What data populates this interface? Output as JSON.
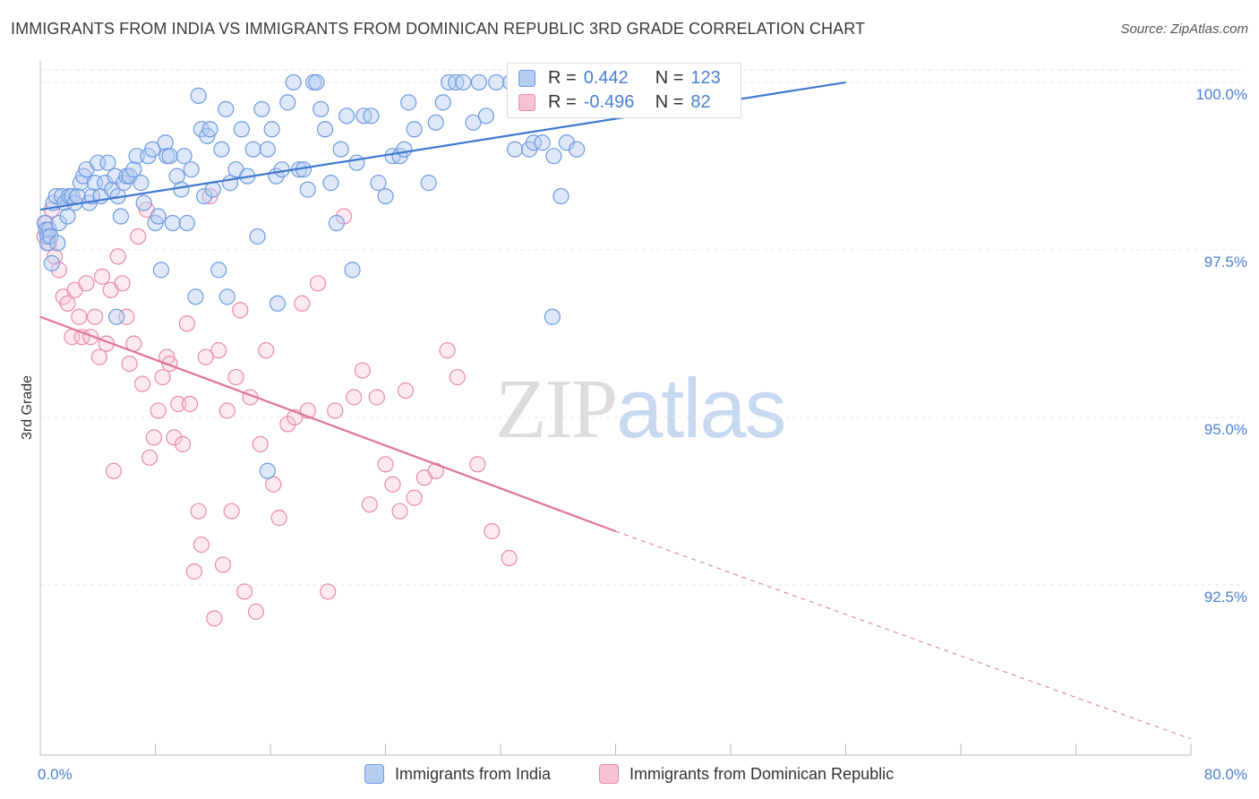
{
  "title": "IMMIGRANTS FROM INDIA VS IMMIGRANTS FROM DOMINICAN REPUBLIC 3RD GRADE CORRELATION CHART",
  "source": "Source: ZipAtlas.com",
  "watermark": {
    "zip": "ZIP",
    "atlas": "atlas"
  },
  "legend": {
    "r_label": "R =",
    "n_label": "N =",
    "india": {
      "r": "0.442",
      "n": "123"
    },
    "dominican": {
      "r": "-0.496",
      "n": "82"
    }
  },
  "colors": {
    "india_fill": "#b6cdf2",
    "india_stroke": "#6d9be0",
    "india_line": "#3f78cf",
    "dominican_fill": "#f6c3d3",
    "dominican_stroke": "#e88aa9",
    "dominican_line": "#e0739a",
    "axis_text": "#4a7fd6",
    "grid": "#e6e6e6"
  },
  "chart_data": {
    "type": "scatter",
    "title": "IMMIGRANTS FROM INDIA VS IMMIGRANTS FROM DOMINICAN REPUBLIC 3RD GRADE CORRELATION CHART",
    "xlabel": "",
    "ylabel": "3rd Grade",
    "xlim": [
      0,
      80
    ],
    "ylim": [
      90.2,
      100.4
    ],
    "x_tick_labels": [
      "0.0%",
      "80.0%"
    ],
    "y_ticks": [
      92.5,
      95.0,
      97.5,
      100.0
    ],
    "y_tick_labels": [
      "92.5%",
      "95.0%",
      "97.5%",
      "100.0%"
    ],
    "grid": "horizontal dashed",
    "legend_position": "top-center",
    "series": [
      {
        "name": "Immigrants from India",
        "r": 0.442,
        "n": 123,
        "trend": {
          "x": [
            0,
            56
          ],
          "y": [
            98.1,
            100.0
          ]
        },
        "points": [
          [
            0.3,
            97.9
          ],
          [
            0.4,
            97.8
          ],
          [
            0.5,
            97.7
          ],
          [
            0.5,
            97.6
          ],
          [
            0.6,
            97.8
          ],
          [
            0.7,
            97.7
          ],
          [
            0.8,
            97.3
          ],
          [
            0.9,
            98.2
          ],
          [
            1.1,
            98.3
          ],
          [
            1.3,
            97.9
          ],
          [
            1.5,
            98.3
          ],
          [
            1.7,
            98.2
          ],
          [
            1.9,
            98.0
          ],
          [
            2.0,
            98.3
          ],
          [
            2.2,
            98.3
          ],
          [
            2.4,
            98.2
          ],
          [
            2.6,
            98.3
          ],
          [
            2.8,
            98.5
          ],
          [
            3.0,
            98.6
          ],
          [
            3.2,
            98.7
          ],
          [
            3.4,
            98.2
          ],
          [
            3.6,
            98.3
          ],
          [
            3.8,
            98.5
          ],
          [
            4.0,
            98.8
          ],
          [
            4.2,
            98.3
          ],
          [
            4.5,
            98.5
          ],
          [
            4.7,
            98.8
          ],
          [
            5.0,
            98.4
          ],
          [
            5.2,
            98.6
          ],
          [
            5.4,
            98.3
          ],
          [
            5.6,
            98.0
          ],
          [
            5.8,
            98.5
          ],
          [
            6.0,
            98.6
          ],
          [
            6.2,
            98.6
          ],
          [
            6.5,
            98.7
          ],
          [
            6.7,
            98.9
          ],
          [
            7.0,
            98.5
          ],
          [
            7.2,
            98.2
          ],
          [
            7.5,
            98.9
          ],
          [
            7.8,
            99.0
          ],
          [
            8.0,
            97.9
          ],
          [
            8.2,
            98.0
          ],
          [
            8.4,
            97.2
          ],
          [
            8.7,
            99.1
          ],
          [
            8.8,
            98.9
          ],
          [
            9.0,
            98.9
          ],
          [
            9.2,
            97.9
          ],
          [
            9.5,
            98.6
          ],
          [
            9.8,
            98.4
          ],
          [
            10.0,
            98.9
          ],
          [
            10.2,
            97.9
          ],
          [
            10.5,
            98.7
          ],
          [
            11.0,
            99.8
          ],
          [
            11.2,
            99.3
          ],
          [
            11.4,
            98.3
          ],
          [
            11.6,
            99.2
          ],
          [
            11.8,
            99.3
          ],
          [
            12.0,
            98.4
          ],
          [
            12.4,
            97.2
          ],
          [
            12.6,
            99.0
          ],
          [
            12.9,
            99.6
          ],
          [
            13.2,
            98.5
          ],
          [
            13.6,
            98.7
          ],
          [
            14.0,
            99.3
          ],
          [
            14.4,
            98.6
          ],
          [
            14.8,
            99.0
          ],
          [
            15.1,
            97.7
          ],
          [
            15.4,
            99.6
          ],
          [
            15.8,
            99.0
          ],
          [
            16.1,
            99.3
          ],
          [
            16.4,
            98.6
          ],
          [
            16.8,
            98.7
          ],
          [
            17.2,
            99.7
          ],
          [
            17.6,
            100.0
          ],
          [
            18.0,
            98.7
          ],
          [
            18.3,
            98.7
          ],
          [
            18.6,
            98.4
          ],
          [
            19.0,
            100.0
          ],
          [
            19.2,
            100.0
          ],
          [
            19.5,
            99.6
          ],
          [
            19.8,
            99.3
          ],
          [
            20.2,
            98.5
          ],
          [
            20.6,
            97.9
          ],
          [
            20.9,
            99.0
          ],
          [
            21.3,
            99.5
          ],
          [
            21.7,
            97.2
          ],
          [
            22.0,
            98.8
          ],
          [
            22.5,
            99.5
          ],
          [
            23.0,
            99.5
          ],
          [
            23.5,
            98.5
          ],
          [
            24.0,
            98.3
          ],
          [
            24.5,
            98.9
          ],
          [
            25.0,
            98.9
          ],
          [
            25.3,
            99.0
          ],
          [
            25.6,
            99.7
          ],
          [
            26.0,
            99.3
          ],
          [
            27.0,
            98.5
          ],
          [
            27.5,
            99.4
          ],
          [
            28.0,
            99.7
          ],
          [
            28.4,
            100.0
          ],
          [
            28.9,
            100.0
          ],
          [
            29.4,
            100.0
          ],
          [
            30.1,
            99.4
          ],
          [
            30.5,
            100.0
          ],
          [
            31.0,
            99.5
          ],
          [
            31.7,
            100.0
          ],
          [
            32.7,
            100.0
          ],
          [
            33.0,
            99.0
          ],
          [
            34.0,
            99.0
          ],
          [
            34.3,
            99.1
          ],
          [
            34.9,
            99.1
          ],
          [
            35.7,
            98.9
          ],
          [
            36.2,
            98.3
          ],
          [
            36.6,
            99.1
          ],
          [
            37.3,
            99.0
          ],
          [
            38.0,
            99.8
          ],
          [
            1.2,
            97.6
          ],
          [
            10.8,
            96.8
          ],
          [
            13.0,
            96.8
          ],
          [
            16.5,
            96.7
          ],
          [
            5.3,
            96.5
          ],
          [
            35.6,
            96.5
          ],
          [
            15.8,
            94.2
          ]
        ]
      },
      {
        "name": "Immigrants from Dominican Republic",
        "r": -0.496,
        "n": 82,
        "trend": {
          "x": [
            0,
            40
          ],
          "y": [
            96.5,
            93.3
          ]
        },
        "trend_extension": {
          "x": [
            40,
            80
          ],
          "y": [
            93.3,
            90.2
          ]
        },
        "points": [
          [
            0.3,
            97.7
          ],
          [
            0.4,
            97.9
          ],
          [
            0.6,
            97.6
          ],
          [
            0.8,
            98.1
          ],
          [
            1.0,
            97.4
          ],
          [
            1.3,
            97.2
          ],
          [
            1.6,
            96.8
          ],
          [
            1.9,
            96.7
          ],
          [
            2.2,
            96.2
          ],
          [
            2.4,
            96.9
          ],
          [
            2.7,
            96.5
          ],
          [
            2.9,
            96.2
          ],
          [
            3.2,
            97.0
          ],
          [
            3.5,
            96.2
          ],
          [
            3.8,
            96.5
          ],
          [
            4.1,
            95.9
          ],
          [
            4.3,
            97.1
          ],
          [
            4.6,
            96.1
          ],
          [
            4.9,
            96.9
          ],
          [
            5.1,
            94.2
          ],
          [
            5.4,
            97.4
          ],
          [
            5.7,
            97.0
          ],
          [
            6.0,
            96.5
          ],
          [
            6.2,
            95.8
          ],
          [
            6.5,
            96.1
          ],
          [
            6.8,
            97.7
          ],
          [
            7.1,
            95.5
          ],
          [
            7.4,
            98.1
          ],
          [
            7.6,
            94.4
          ],
          [
            7.9,
            94.7
          ],
          [
            8.2,
            95.1
          ],
          [
            8.5,
            95.6
          ],
          [
            8.8,
            95.9
          ],
          [
            9.0,
            95.8
          ],
          [
            9.3,
            94.7
          ],
          [
            9.6,
            95.2
          ],
          [
            9.9,
            94.6
          ],
          [
            10.2,
            96.4
          ],
          [
            10.4,
            95.2
          ],
          [
            10.7,
            92.7
          ],
          [
            11.0,
            93.6
          ],
          [
            11.2,
            93.1
          ],
          [
            11.5,
            95.9
          ],
          [
            11.8,
            98.3
          ],
          [
            12.1,
            92.0
          ],
          [
            12.4,
            96.0
          ],
          [
            12.7,
            92.8
          ],
          [
            13.0,
            95.1
          ],
          [
            13.3,
            93.6
          ],
          [
            13.6,
            95.6
          ],
          [
            13.9,
            96.6
          ],
          [
            14.2,
            92.4
          ],
          [
            14.6,
            95.3
          ],
          [
            15.0,
            92.1
          ],
          [
            15.3,
            94.6
          ],
          [
            15.7,
            96.0
          ],
          [
            16.2,
            94.0
          ],
          [
            16.6,
            93.5
          ],
          [
            17.2,
            94.9
          ],
          [
            17.7,
            95.0
          ],
          [
            18.2,
            96.7
          ],
          [
            18.6,
            95.1
          ],
          [
            19.3,
            97.0
          ],
          [
            20.0,
            92.4
          ],
          [
            20.5,
            95.1
          ],
          [
            21.1,
            98.0
          ],
          [
            21.8,
            95.3
          ],
          [
            22.4,
            95.7
          ],
          [
            22.9,
            93.7
          ],
          [
            23.4,
            95.3
          ],
          [
            24.0,
            94.3
          ],
          [
            24.5,
            94.0
          ],
          [
            25.0,
            93.6
          ],
          [
            25.4,
            95.4
          ],
          [
            26.0,
            93.8
          ],
          [
            26.7,
            94.1
          ],
          [
            27.5,
            94.2
          ],
          [
            28.3,
            96.0
          ],
          [
            29.0,
            95.6
          ],
          [
            30.4,
            94.3
          ],
          [
            31.4,
            93.3
          ],
          [
            32.6,
            92.9
          ]
        ]
      }
    ]
  },
  "bottom_legend": {
    "india": "Immigrants from India",
    "dominican": "Immigrants from Dominican Republic"
  }
}
